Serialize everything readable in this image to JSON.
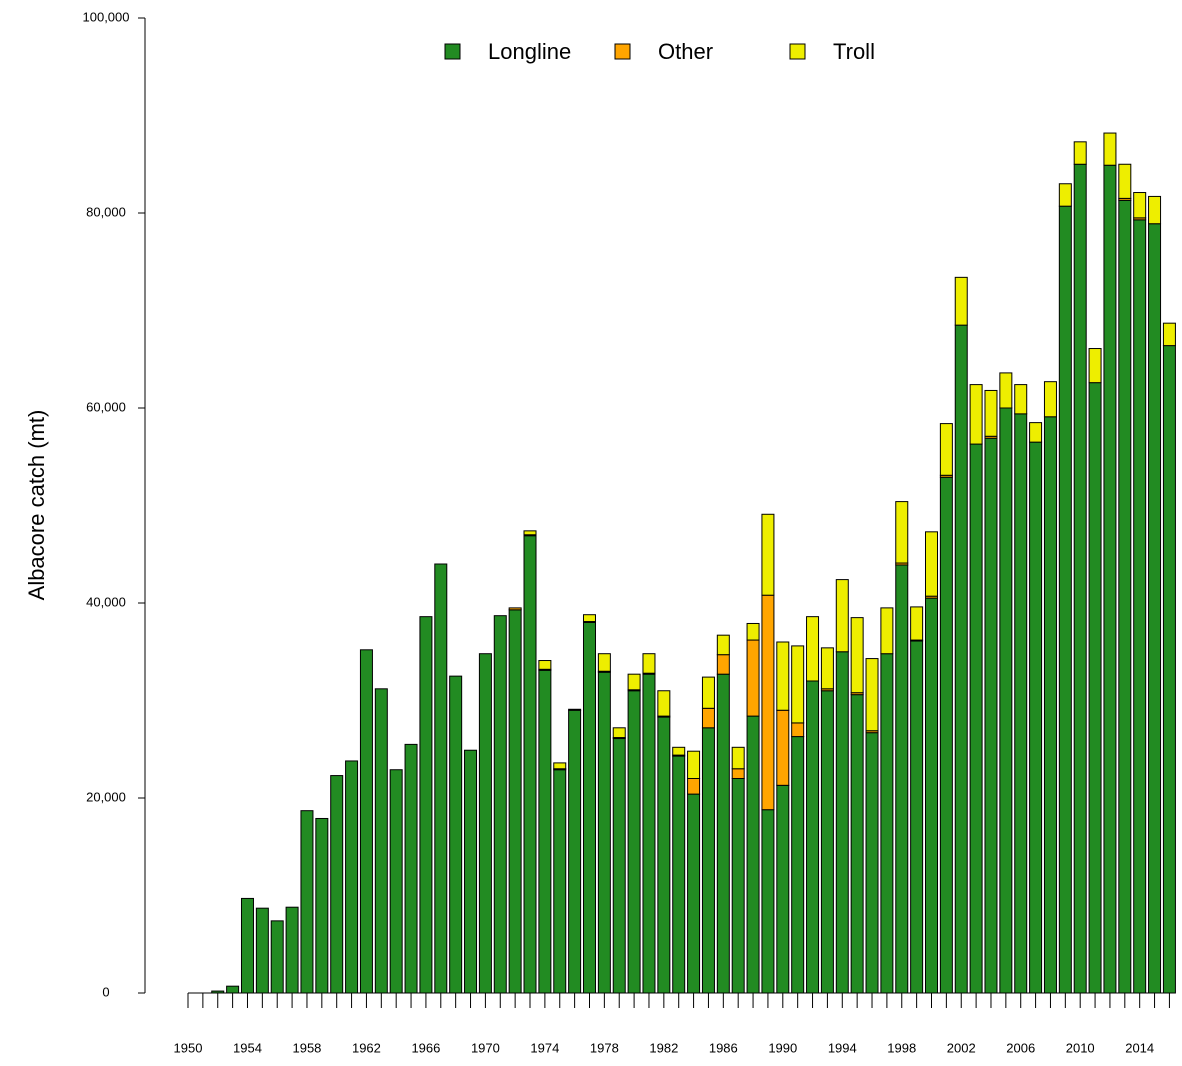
{
  "chart_data": {
    "type": "stacked-bar",
    "y_label": "Albacore catch (mt)",
    "categories": [
      "1950",
      null,
      null,
      null,
      "1954",
      null,
      null,
      null,
      "1958",
      null,
      null,
      null,
      "1962",
      null,
      null,
      null,
      "1966",
      null,
      null,
      null,
      "1970",
      null,
      null,
      null,
      "1974",
      null,
      null,
      null,
      "1978",
      null,
      null,
      null,
      "1982",
      null,
      null,
      null,
      "1986",
      null,
      null,
      null,
      "1990",
      null,
      null,
      null,
      "1994",
      null,
      null,
      null,
      "1998",
      null,
      null,
      null,
      "2002",
      null,
      null,
      null,
      "2006",
      null,
      null,
      null,
      "2010",
      null,
      null,
      null,
      "2014",
      null,
      null
    ],
    "series": [
      {
        "name": "Longline",
        "color": "#228B22",
        "values": [
          0,
          0,
          200,
          700,
          9700,
          8700,
          7400,
          8800,
          18700,
          17900,
          22300,
          23800,
          35200,
          31200,
          22900,
          25500,
          38600,
          44000,
          32500,
          24900,
          34800,
          38700,
          39300,
          46900,
          33100,
          22900,
          29000,
          38000,
          32900,
          26100,
          31000,
          32700,
          28300,
          24300,
          20400,
          27200,
          32700,
          22000,
          28400,
          18800,
          21300,
          26300,
          32000,
          31000,
          35000,
          30600,
          26700,
          34800,
          43900,
          36100,
          40500,
          52900,
          68500,
          56300,
          56900,
          60000,
          59400,
          56500,
          59100,
          80700,
          85000,
          62600,
          84900,
          81300,
          79300,
          78900,
          66400
        ]
      },
      {
        "name": "Other",
        "color": "#FFA500",
        "values": [
          0,
          0,
          0,
          0,
          0,
          0,
          0,
          0,
          0,
          0,
          0,
          0,
          0,
          0,
          0,
          0,
          0,
          0,
          0,
          0,
          0,
          0,
          200,
          100,
          100,
          100,
          0,
          100,
          100,
          100,
          100,
          100,
          100,
          100,
          1600,
          2000,
          2000,
          1000,
          7800,
          22000,
          7700,
          1400,
          0,
          200,
          0,
          200,
          200,
          0,
          200,
          100,
          200,
          200,
          0,
          0,
          200,
          0,
          0,
          0,
          0,
          0,
          0,
          0,
          0,
          200,
          200,
          0,
          0
        ]
      },
      {
        "name": "Troll",
        "color": "#EEEE00",
        "values": [
          0,
          0,
          0,
          0,
          0,
          0,
          0,
          0,
          0,
          0,
          0,
          0,
          0,
          0,
          0,
          0,
          0,
          0,
          0,
          0,
          0,
          0,
          0,
          400,
          900,
          600,
          100,
          700,
          1800,
          1000,
          1600,
          2000,
          2600,
          800,
          2800,
          3200,
          2000,
          2200,
          1700,
          8300,
          7000,
          7900,
          6600,
          4200,
          7400,
          7700,
          7400,
          4700,
          6300,
          3400,
          6600,
          5300,
          4900,
          6100,
          4700,
          3600,
          3000,
          2000,
          3600,
          2300,
          2300,
          3500,
          3300,
          3500,
          2600,
          2800,
          2300
        ]
      }
    ],
    "ylim": [
      0,
      100000
    ],
    "yticks": [
      0,
      {
        "value": 20000,
        "label": "20,000"
      },
      {
        "value": 40000,
        "label": "40,000"
      },
      {
        "value": 60000,
        "label": "60,000"
      },
      {
        "value": 80000,
        "label": "80,000"
      },
      {
        "value": 100000,
        "label": "100,000"
      }
    ],
    "legend": "top"
  }
}
